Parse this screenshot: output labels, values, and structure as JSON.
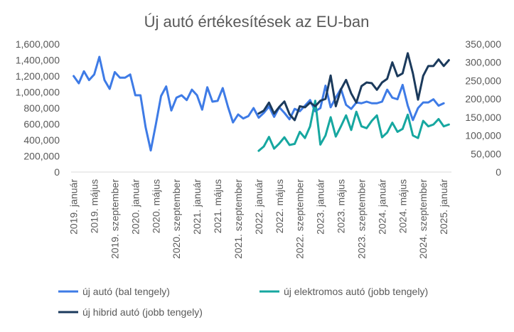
{
  "chart_data": {
    "type": "line",
    "title": "Új autó értékesítések az EU-ban",
    "xlabel": "",
    "ylabel": "",
    "y_left": {
      "lim": [
        0,
        1600000
      ],
      "ticks": [
        "0",
        "200,000",
        "400,000",
        "600,000",
        "800,000",
        "1,000,000",
        "1,200,000",
        "1,400,000",
        "1,600,000"
      ]
    },
    "y_right": {
      "lim": [
        0,
        350000
      ],
      "ticks": [
        "0",
        "50,000",
        "100,000",
        "150,000",
        "200,000",
        "250,000",
        "300,000",
        "350,000"
      ]
    },
    "x_tick_labels": [
      "2019. január",
      "2019. május",
      "2019. szeptember",
      "2020. január",
      "2020. május",
      "2020. szeptember",
      "2021. január",
      "2021. május",
      "2021. szeptember",
      "2022. január",
      "2022. május",
      "2022. szeptember",
      "2023. január",
      "2023. május",
      "2023. szeptember",
      "2024. január",
      "2024. május",
      "2024. szeptember",
      "2025. január"
    ],
    "x_tick_step": 4,
    "grid": false,
    "legend": "bottom",
    "series": [
      {
        "name": "új autó (bal tengely)",
        "axis": "left",
        "color": "#3E7BE6",
        "start_index": 0,
        "values": [
          1200000,
          1110000,
          1260000,
          1150000,
          1220000,
          1440000,
          1150000,
          1040000,
          1250000,
          1180000,
          1180000,
          1220000,
          960000,
          960000,
          560000,
          270000,
          600000,
          950000,
          1070000,
          770000,
          930000,
          960000,
          900000,
          1030000,
          960000,
          780000,
          1060000,
          880000,
          890000,
          1050000,
          820000,
          620000,
          720000,
          670000,
          700000,
          800000,
          680000,
          740000,
          820000,
          690000,
          810000,
          740000,
          660000,
          790000,
          760000,
          830000,
          900000,
          760000,
          800000,
          1080000,
          810000,
          930000,
          1040000,
          840000,
          790000,
          870000,
          860000,
          880000,
          860000,
          860000,
          880000,
          1030000,
          930000,
          910000,
          1090000,
          830000,
          650000,
          800000,
          870000,
          870000,
          910000,
          830000,
          860000
        ]
      },
      {
        "name": "új elektromos autó (jobb tengely)",
        "axis": "right",
        "color": "#16A7A0",
        "start_index": 36,
        "values": [
          58000,
          70000,
          96000,
          64000,
          78000,
          95000,
          74000,
          77000,
          110000,
          93000,
          125000,
          195000,
          75000,
          100000,
          150000,
          97000,
          125000,
          155000,
          115000,
          165000,
          125000,
          120000,
          140000,
          155000,
          95000,
          108000,
          135000,
          110000,
          118000,
          157000,
          100000,
          93000,
          140000,
          125000,
          130000,
          145000,
          125000,
          130000
        ]
      },
      {
        "name": "új hibrid autó (jobb tengely)",
        "axis": "right",
        "color": "#1B3A5C",
        "start_index": 36,
        "values": [
          160000,
          168000,
          190000,
          160000,
          178000,
          193000,
          158000,
          142000,
          180000,
          177000,
          190000,
          180000,
          195000,
          200000,
          264000,
          180000,
          226000,
          252000,
          215000,
          190000,
          235000,
          245000,
          243000,
          225000,
          245000,
          255000,
          300000,
          262000,
          270000,
          325000,
          270000,
          198000,
          263000,
          290000,
          290000,
          308000,
          290000,
          306000
        ]
      }
    ]
  }
}
